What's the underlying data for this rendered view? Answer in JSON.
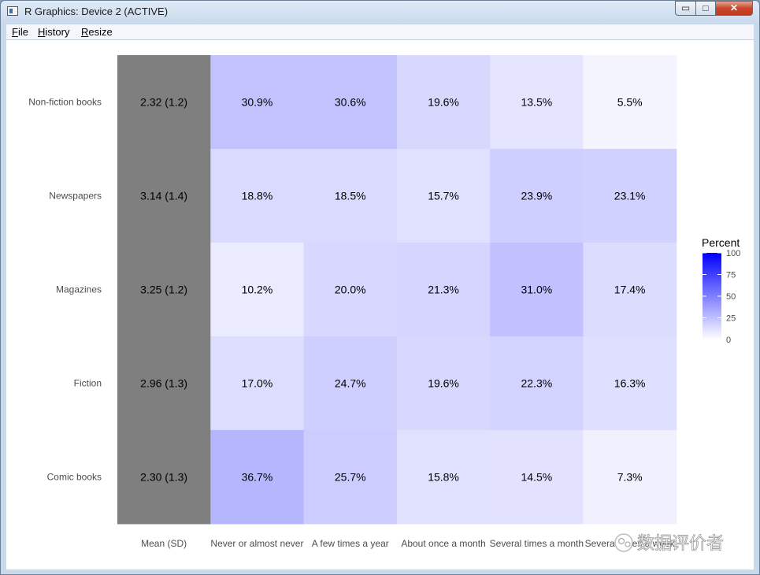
{
  "window": {
    "title": "R Graphics: Device 2 (ACTIVE)",
    "controls": {
      "minimize": "▭",
      "maximize": "□",
      "close": "✕"
    }
  },
  "menu": {
    "items": [
      "File",
      "History",
      "Resize"
    ]
  },
  "chart_data": {
    "type": "heatmap",
    "rows": [
      "Non-fiction books",
      "Newspapers",
      "Magazines",
      "Fiction",
      "Comic books"
    ],
    "columns": [
      "Mean (SD)",
      "Never or almost never",
      "A few times a year",
      "About once a month",
      "Several times a month",
      "Several times a week"
    ],
    "mean_sd": [
      "2.32 (1.2)",
      "3.14 (1.4)",
      "3.25 (1.2)",
      "2.96 (1.3)",
      "2.30 (1.3)"
    ],
    "percent": [
      [
        30.9,
        30.6,
        19.6,
        13.5,
        5.5
      ],
      [
        18.8,
        18.5,
        15.7,
        23.9,
        23.1
      ],
      [
        10.2,
        20.0,
        21.3,
        31.0,
        17.4
      ],
      [
        17.0,
        24.7,
        19.6,
        22.3,
        16.3
      ],
      [
        36.7,
        25.7,
        15.8,
        14.5,
        7.3
      ]
    ],
    "legend": {
      "title": "Percent",
      "ticks": [
        100,
        75,
        50,
        25,
        0
      ],
      "range": [
        0,
        100
      ],
      "low_color": "#ffffff",
      "high_color": "#0000ff",
      "placement": "right"
    },
    "mean_column_color": "#7f7f7f",
    "grid": false
  },
  "watermark": {
    "text": "数据评价者"
  }
}
